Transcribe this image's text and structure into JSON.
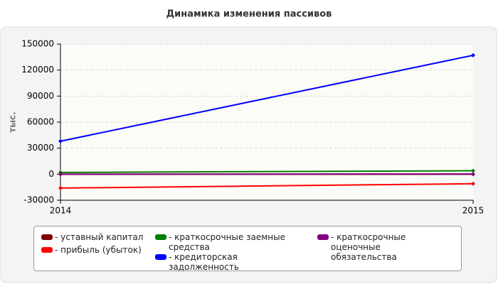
{
  "chart_data": {
    "type": "line",
    "title": "Динамика изменения пассивов",
    "y_label": "тыс.",
    "categories": [
      "2014",
      "2015"
    ],
    "series": [
      {
        "name": "- уставный капитал",
        "color": "#800000",
        "values": [
          10,
          10
        ]
      },
      {
        "name": "- прибыль (убыток)",
        "color": "#ff0000",
        "values": [
          -16000,
          -11000
        ]
      },
      {
        "name": "- краткосрочные заемные средства",
        "color": "#008000",
        "values": [
          2000,
          4000
        ]
      },
      {
        "name": "- кредиторская задолженность",
        "color": "#0000ff",
        "values": [
          38000,
          137000
        ]
      },
      {
        "name": "- краткосрочные оценочные обязательства",
        "color": "#800080",
        "values": [
          0,
          200
        ]
      }
    ],
    "ylim": [
      -30000,
      150000
    ],
    "yticks": [
      -30000,
      0,
      30000,
      60000,
      90000,
      120000,
      150000
    ],
    "grid": true
  }
}
